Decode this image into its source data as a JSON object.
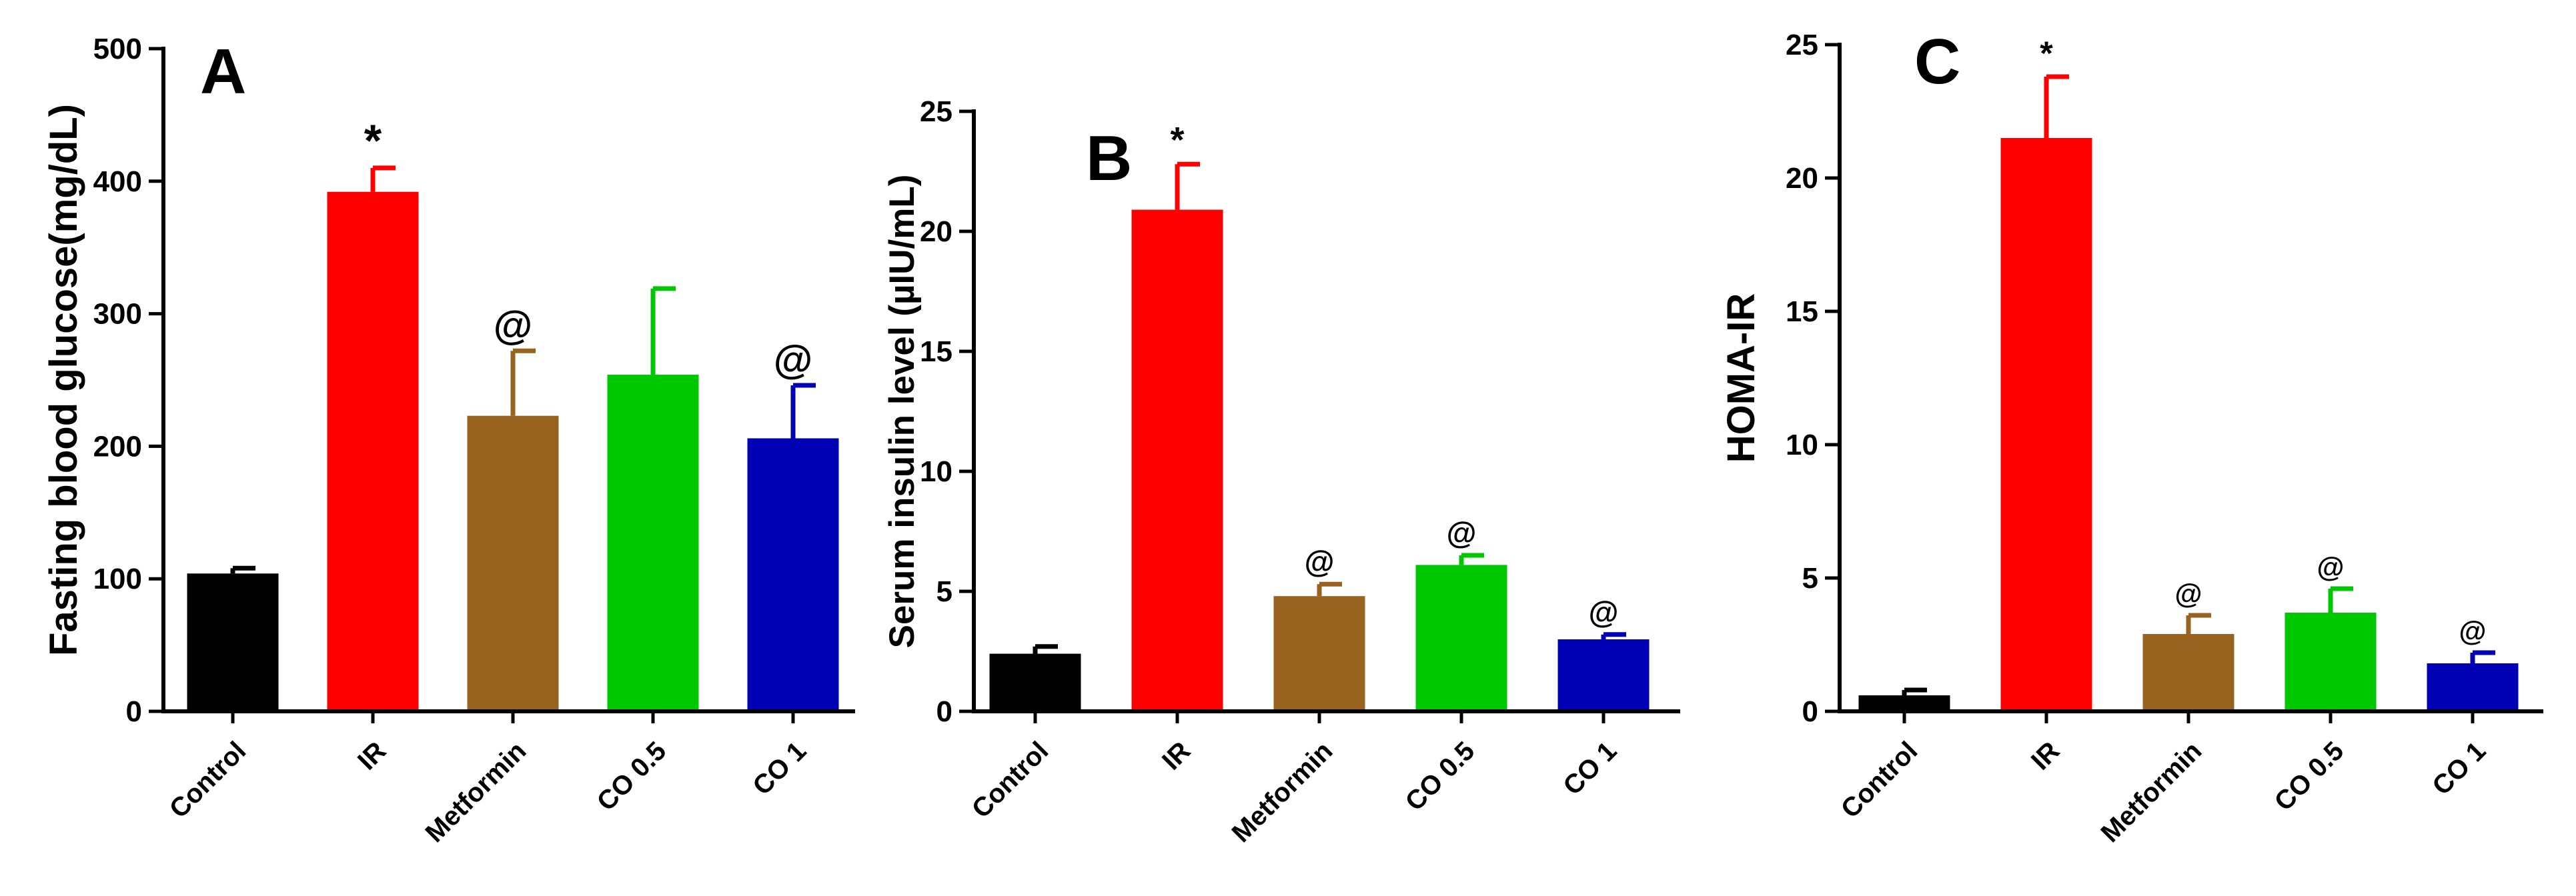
{
  "figure": {
    "panels_count": 3
  },
  "chart_data": [
    {
      "type": "bar",
      "panel_label": "A",
      "title": "",
      "xlabel": "",
      "ylabel": "Fasting blood glucose(mg/dL)",
      "ylim": [
        0,
        500
      ],
      "yticks": [
        0,
        100,
        200,
        300,
        400,
        500
      ],
      "ytick_labels": [
        "0",
        "100",
        "200",
        "300",
        "400",
        "500"
      ],
      "categories": [
        "Control",
        "IR",
        "Metformin",
        "CO 0.5",
        "CO 1"
      ],
      "values": [
        104,
        392,
        223,
        254,
        206
      ],
      "errors": [
        4,
        18,
        49,
        65,
        40
      ],
      "colors": [
        "#000000",
        "#ff0000",
        "#98631f",
        "#00c800",
        "#0000b4"
      ],
      "annotations": [
        "",
        "*",
        "@",
        "",
        "@"
      ],
      "grid": false
    },
    {
      "type": "bar",
      "panel_label": "B",
      "title": "",
      "xlabel": "",
      "ylabel": "Serum insulin level (µIU/mL)",
      "ylim": [
        0,
        25
      ],
      "yticks": [
        0,
        5,
        10,
        15,
        20,
        25
      ],
      "ytick_labels": [
        "0",
        "5",
        "10",
        "15",
        "20",
        "25"
      ],
      "categories": [
        "Control",
        "IR",
        "Metformin",
        "CO 0.5",
        "CO 1"
      ],
      "values": [
        2.4,
        20.9,
        4.8,
        6.1,
        3.0
      ],
      "errors": [
        0.3,
        1.9,
        0.5,
        0.4,
        0.2
      ],
      "colors": [
        "#000000",
        "#ff0000",
        "#98631f",
        "#00c800",
        "#0000b4"
      ],
      "annotations": [
        "",
        "*",
        "@",
        "@",
        "@"
      ],
      "grid": false
    },
    {
      "type": "bar",
      "panel_label": "C",
      "title": "",
      "xlabel": "",
      "ylabel": "HOMA-IR",
      "ylim": [
        0,
        25
      ],
      "yticks": [
        0,
        5,
        10,
        15,
        20,
        25
      ],
      "ytick_labels": [
        "0",
        "5",
        "10",
        "15",
        "20",
        "25"
      ],
      "categories": [
        "Control",
        "IR",
        "Metformin",
        "CO 0.5",
        "CO 1"
      ],
      "values": [
        0.6,
        21.5,
        2.9,
        3.7,
        1.8
      ],
      "errors": [
        0.2,
        2.3,
        0.7,
        0.9,
        0.4
      ],
      "colors": [
        "#000000",
        "#ff0000",
        "#98631f",
        "#00c800",
        "#0000b4"
      ],
      "annotations": [
        "",
        "*",
        "@",
        "@",
        "@"
      ],
      "grid": false
    }
  ]
}
